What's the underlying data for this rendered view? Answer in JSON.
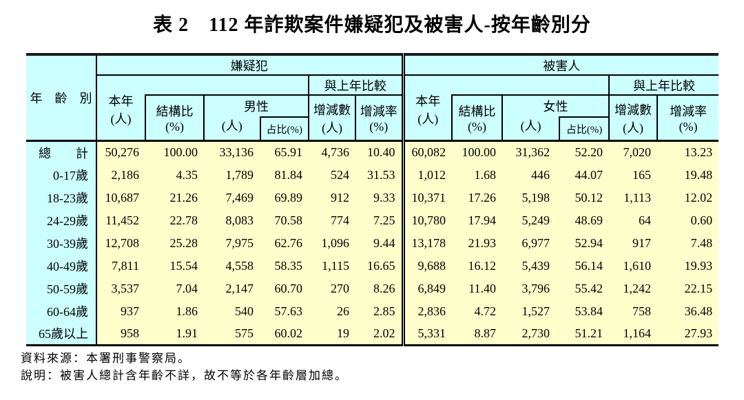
{
  "title": "表 2　112 年詐欺案件嫌疑犯及被害人-按年齡別分",
  "colors": {
    "header_bg": "#CCFFFF",
    "body_bg": "#FFFFCC",
    "border": "#000000"
  },
  "table": {
    "age_header": "年　齡　別",
    "sections": [
      {
        "title": "嫌疑犯",
        "current_label": "本年",
        "current_unit": "(人)",
        "share_label": "結構比",
        "share_unit": "(%)",
        "gender_label": "男性",
        "gender_unit": "(人)",
        "gender_share_label": "占比(%)",
        "compare_label": "與上年比較",
        "diff_label": "增減數",
        "diff_unit": "(人)",
        "rate_label": "增減率",
        "rate_unit": "(%)"
      },
      {
        "title": "被害人",
        "current_label": "本年",
        "current_unit": "(人)",
        "share_label": "結構比",
        "share_unit": "(%)",
        "gender_label": "女性",
        "gender_unit": "(人)",
        "gender_share_label": "占比(%)",
        "compare_label": "與上年比較",
        "diff_label": "增減數",
        "diff_unit": "(人)",
        "rate_label": "增減率",
        "rate_unit": "(%)"
      }
    ],
    "rows": [
      {
        "age": "總　　計",
        "suspect": [
          "50,276",
          "100.00",
          "33,136",
          "65.91",
          "4,736",
          "10.40"
        ],
        "victim": [
          "60,082",
          "100.00",
          "31,362",
          "52.20",
          "7,020",
          "13.23"
        ]
      },
      {
        "age": "0-17歲",
        "suspect": [
          "2,186",
          "4.35",
          "1,789",
          "81.84",
          "524",
          "31.53"
        ],
        "victim": [
          "1,012",
          "1.68",
          "446",
          "44.07",
          "165",
          "19.48"
        ]
      },
      {
        "age": "18-23歲",
        "suspect": [
          "10,687",
          "21.26",
          "7,469",
          "69.89",
          "912",
          "9.33"
        ],
        "victim": [
          "10,371",
          "17.26",
          "5,198",
          "50.12",
          "1,113",
          "12.02"
        ]
      },
      {
        "age": "24-29歲",
        "suspect": [
          "11,452",
          "22.78",
          "8,083",
          "70.58",
          "774",
          "7.25"
        ],
        "victim": [
          "10,780",
          "17.94",
          "5,249",
          "48.69",
          "64",
          "0.60"
        ]
      },
      {
        "age": "30-39歲",
        "suspect": [
          "12,708",
          "25.28",
          "7,975",
          "62.76",
          "1,096",
          "9.44"
        ],
        "victim": [
          "13,178",
          "21.93",
          "6,977",
          "52.94",
          "917",
          "7.48"
        ]
      },
      {
        "age": "40-49歲",
        "suspect": [
          "7,811",
          "15.54",
          "4,558",
          "58.35",
          "1,115",
          "16.65"
        ],
        "victim": [
          "9,688",
          "16.12",
          "5,439",
          "56.14",
          "1,610",
          "19.93"
        ]
      },
      {
        "age": "50-59歲",
        "suspect": [
          "3,537",
          "7.04",
          "2,147",
          "60.70",
          "270",
          "8.26"
        ],
        "victim": [
          "6,849",
          "11.40",
          "3,796",
          "55.42",
          "1,242",
          "22.15"
        ]
      },
      {
        "age": "60-64歲",
        "suspect": [
          "937",
          "1.86",
          "540",
          "57.63",
          "26",
          "2.85"
        ],
        "victim": [
          "2,836",
          "4.72",
          "1,527",
          "53.84",
          "758",
          "36.48"
        ]
      },
      {
        "age": "65歲以上",
        "suspect": [
          "958",
          "1.91",
          "575",
          "60.02",
          "19",
          "2.02"
        ],
        "victim": [
          "5,331",
          "8.87",
          "2,730",
          "51.21",
          "1,164",
          "27.93"
        ]
      }
    ]
  },
  "notes": [
    "資料來源：本署刑事警察局。",
    "說明：被害人總計含年齡不詳，故不等於各年齡層加總。"
  ]
}
